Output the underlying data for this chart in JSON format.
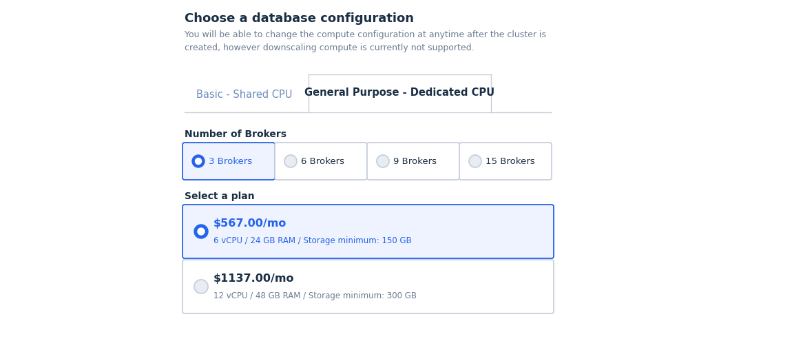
{
  "bg_color": "#ffffff",
  "title": "Choose a database configuration",
  "subtitle": "You will be able to change the compute configuration at anytime after the cluster is\ncreated, however downscaling compute is currently not supported.",
  "title_color": "#1a2e44",
  "subtitle_color": "#6b7c93",
  "tab_inactive_label": "Basic - Shared CPU",
  "tab_active_label": "General Purpose - Dedicated CPU",
  "tab_active_color": "#1a2e44",
  "tab_inactive_color": "#6b8cba",
  "brokers_label": "Number of Brokers",
  "brokers_label_color": "#1a2e44",
  "broker_options": [
    "3 Brokers",
    "6 Brokers",
    "9 Brokers",
    "15 Brokers"
  ],
  "broker_selected": 0,
  "broker_selected_bg": "#eef3ff",
  "broker_selected_border": "#2563eb",
  "broker_unselected_bg": "#ffffff",
  "broker_unselected_border": "#c8d0dc",
  "broker_radio_selected_color": "#2563eb",
  "broker_radio_unselected_color": "#c8d0dc",
  "broker_text_selected_color": "#2563eb",
  "broker_text_unselected_color": "#1a2e44",
  "plan_label": "Select a plan",
  "plan_label_color": "#1a2e44",
  "plans": [
    {
      "price": "$567.00/mo",
      "details": "6 vCPU / 24 GB RAM / Storage minimum: 150 GB",
      "selected": true,
      "bg": "#eef3ff",
      "border": "#2563eb",
      "price_color": "#2563eb",
      "details_color": "#2563eb",
      "radio_color": "#2563eb"
    },
    {
      "price": "$1137.00/mo",
      "details": "12 vCPU / 48 GB RAM / Storage minimum: 300 GB",
      "selected": false,
      "bg": "#ffffff",
      "border": "#c8d0dc",
      "price_color": "#1a2e44",
      "details_color": "#6b7c93",
      "radio_color": "#c8d0dc"
    }
  ],
  "tab_line_color": "#c8d0dc",
  "figsize": [
    11.5,
    4.95
  ],
  "dpi": 100
}
